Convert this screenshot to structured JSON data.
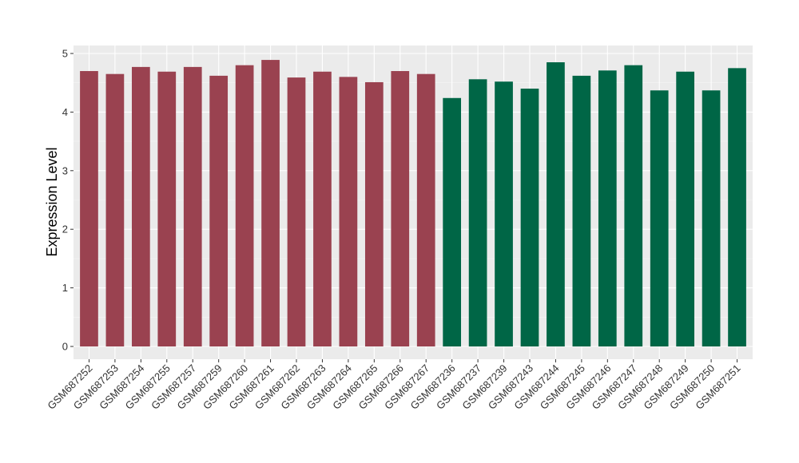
{
  "chart_data": {
    "type": "bar",
    "title": "",
    "xlabel": "",
    "ylabel": "Expression Level",
    "ylim": [
      -0.22,
      5.12
    ],
    "yticks": [
      0,
      1,
      2,
      3,
      4,
      5
    ],
    "grid": true,
    "legend": "none",
    "categories": [
      "GSM687252",
      "GSM687253",
      "GSM687254",
      "GSM687255",
      "GSM687257",
      "GSM687259",
      "GSM687260",
      "GSM687261",
      "GSM687262",
      "GSM687263",
      "GSM687264",
      "GSM687265",
      "GSM687266",
      "GSM687267",
      "GSM687236",
      "GSM687237",
      "GSM687239",
      "GSM687243",
      "GSM687244",
      "GSM687245",
      "GSM687246",
      "GSM687247",
      "GSM687248",
      "GSM687249",
      "GSM687250",
      "GSM687251"
    ],
    "values": [
      4.7,
      4.65,
      4.77,
      4.69,
      4.77,
      4.62,
      4.8,
      4.89,
      4.59,
      4.69,
      4.6,
      4.51,
      4.7,
      4.65,
      4.24,
      4.56,
      4.52,
      4.4,
      4.85,
      4.62,
      4.71,
      4.8,
      4.37,
      4.69,
      4.37,
      4.75
    ],
    "groups": [
      "a",
      "a",
      "a",
      "a",
      "a",
      "a",
      "a",
      "a",
      "a",
      "a",
      "a",
      "a",
      "a",
      "a",
      "b",
      "b",
      "b",
      "b",
      "b",
      "b",
      "b",
      "b",
      "b",
      "b",
      "b",
      "b"
    ],
    "colors": {
      "a": "#9A4250",
      "b": "#006646"
    }
  }
}
